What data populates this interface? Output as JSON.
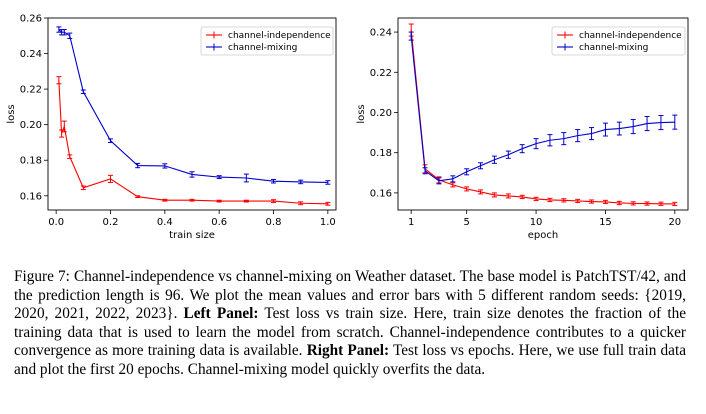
{
  "chart_data": [
    {
      "type": "line",
      "panel": "left",
      "xlabel": "train size",
      "ylabel": "loss",
      "xlim": [
        -0.03,
        1.03
      ],
      "ylim": [
        0.152,
        0.26
      ],
      "xticks": [
        0.0,
        0.2,
        0.4,
        0.6,
        0.8,
        1.0
      ],
      "xtick_labels": [
        "0.0",
        "0.2",
        "0.4",
        "0.6",
        "0.8",
        "1.0"
      ],
      "yticks": [
        0.16,
        0.18,
        0.2,
        0.22,
        0.24,
        0.26
      ],
      "ytick_labels": [
        "0.16",
        "0.18",
        "0.20",
        "0.22",
        "0.24",
        "0.26"
      ],
      "grid": false,
      "legend_position": "upper right",
      "series": [
        {
          "name": "channel-independence",
          "color": "#ff0000",
          "x": [
            0.01,
            0.02,
            0.03,
            0.05,
            0.1,
            0.2,
            0.3,
            0.4,
            0.5,
            0.6,
            0.7,
            0.8,
            0.9,
            1.0
          ],
          "y": [
            0.225,
            0.195,
            0.199,
            0.182,
            0.1645,
            0.1695,
            0.1595,
            0.1575,
            0.1575,
            0.157,
            0.157,
            0.157,
            0.1558,
            0.1555
          ],
          "err": [
            0.002,
            0.002,
            0.003,
            0.001,
            0.001,
            0.002,
            0.0005,
            0.0005,
            0.0005,
            0.0005,
            0.0005,
            0.0008,
            0.0008,
            0.0008
          ]
        },
        {
          "name": "channel-mixing",
          "color": "#0000cc",
          "x": [
            0.01,
            0.02,
            0.03,
            0.05,
            0.1,
            0.2,
            0.3,
            0.4,
            0.5,
            0.6,
            0.7,
            0.8,
            0.9,
            1.0
          ],
          "y": [
            0.2535,
            0.252,
            0.252,
            0.25,
            0.2185,
            0.191,
            0.177,
            0.1768,
            0.172,
            0.1705,
            0.17,
            0.1682,
            0.1678,
            0.1675
          ],
          "err": [
            0.0015,
            0.0015,
            0.0015,
            0.0015,
            0.001,
            0.001,
            0.0012,
            0.0012,
            0.0015,
            0.0008,
            0.0022,
            0.001,
            0.001,
            0.001
          ]
        }
      ]
    },
    {
      "type": "line",
      "panel": "right",
      "xlabel": "epoch",
      "ylabel": "loss",
      "xlim": [
        0.05,
        20.95
      ],
      "ylim": [
        0.1515,
        0.247
      ],
      "xticks": [
        1,
        5,
        10,
        15,
        20
      ],
      "xtick_labels": [
        "1",
        "5",
        "10",
        "15",
        "20"
      ],
      "yticks": [
        0.16,
        0.18,
        0.2,
        0.22,
        0.24
      ],
      "ytick_labels": [
        "0.16",
        "0.18",
        "0.20",
        "0.22",
        "0.24"
      ],
      "grid": false,
      "legend_position": "upper right",
      "series": [
        {
          "name": "channel-independence",
          "color": "#ff0000",
          "x": [
            1,
            2,
            3,
            4,
            5,
            6,
            7,
            8,
            9,
            10,
            11,
            12,
            13,
            14,
            15,
            16,
            17,
            18,
            19,
            20
          ],
          "y": [
            0.241,
            0.172,
            0.1665,
            0.164,
            0.162,
            0.1605,
            0.159,
            0.1585,
            0.158,
            0.157,
            0.1565,
            0.1563,
            0.156,
            0.1557,
            0.1555,
            0.155,
            0.1548,
            0.1547,
            0.1546,
            0.1545
          ],
          "err": [
            0.003,
            0.002,
            0.0015,
            0.001,
            0.001,
            0.001,
            0.001,
            0.001,
            0.0008,
            0.0008,
            0.0008,
            0.0008,
            0.0008,
            0.0008,
            0.0008,
            0.0008,
            0.0008,
            0.0008,
            0.0008,
            0.0008
          ]
        },
        {
          "name": "channel-mixing",
          "color": "#0000cc",
          "x": [
            1,
            2,
            3,
            4,
            5,
            6,
            7,
            8,
            9,
            10,
            11,
            12,
            13,
            14,
            15,
            16,
            17,
            18,
            19,
            20
          ],
          "y": [
            0.238,
            0.171,
            0.166,
            0.167,
            0.1705,
            0.1735,
            0.1765,
            0.179,
            0.182,
            0.1845,
            0.1862,
            0.187,
            0.1885,
            0.1895,
            0.1915,
            0.192,
            0.193,
            0.1945,
            0.195,
            0.1952
          ],
          "err": [
            0.002,
            0.0015,
            0.0015,
            0.0015,
            0.0015,
            0.0015,
            0.0018,
            0.0018,
            0.002,
            0.0025,
            0.0028,
            0.003,
            0.003,
            0.003,
            0.0032,
            0.0032,
            0.0035,
            0.0035,
            0.0035,
            0.0035
          ]
        }
      ]
    }
  ],
  "caption": {
    "label": "Figure 7:",
    "text1": " Channel-independence vs channel-mixing on Weather dataset.  The base model is PatchTST/42, and the prediction length is 96. We plot the mean values and error bars with 5 different random seeds: {2019, 2020, 2021, 2022, 2023}. ",
    "left_label": "Left Panel:",
    "text2": " Test loss vs train size. Here, train size denotes the fraction of the training data that is used to learn the model from scratch. Channel-independence contributes to a quicker convergence as more training data is available. ",
    "right_label": "Right Panel:",
    "text3": " Test loss vs epochs. Here, we use full train data and plot the first 20 epochs. Channel-mixing model quickly overfits the data."
  }
}
